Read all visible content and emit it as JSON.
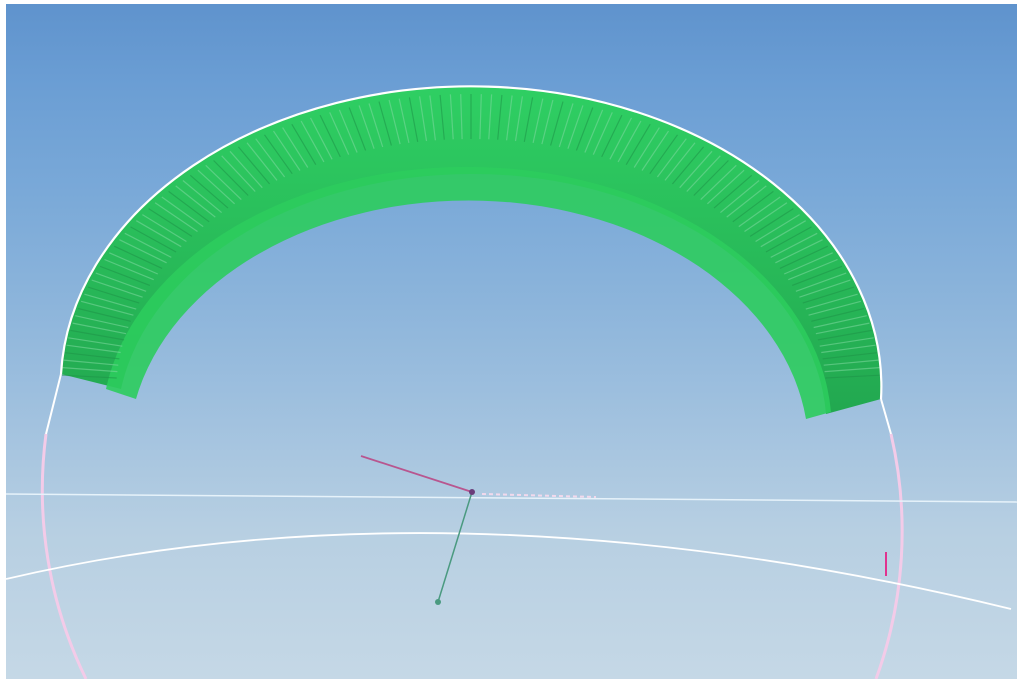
{
  "viewport": {
    "background_top": "#5f93cd",
    "background_bottom": "#c5d8e6"
  },
  "model": {
    "shell_color": "#2ec25d",
    "shell_dark_color": "#1f9a48",
    "outline_color": "#ffffff",
    "circle_color": "#f0c8e6"
  },
  "triad": {
    "readout": "",
    "line_color": "#b8568f",
    "axis_color": "#4a9a80"
  }
}
